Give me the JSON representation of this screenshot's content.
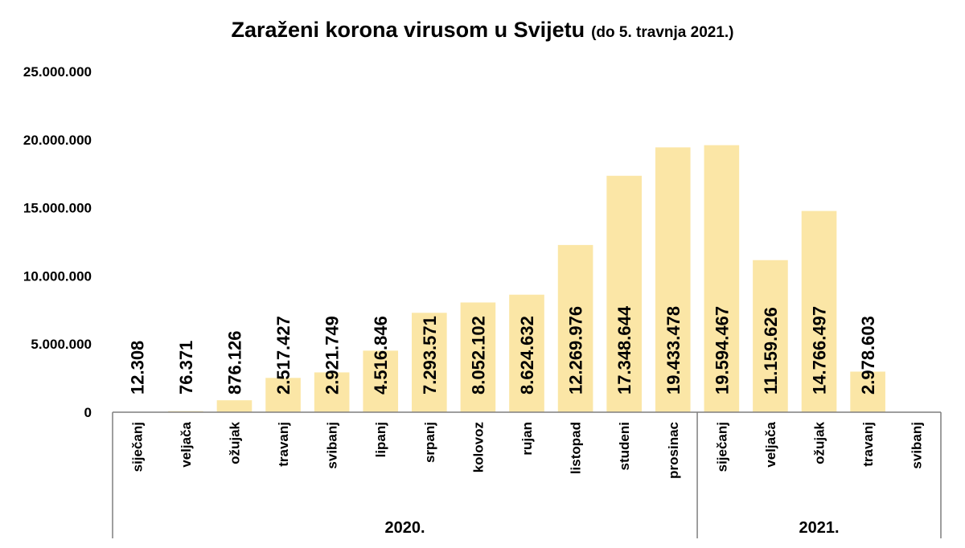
{
  "chart_data": {
    "type": "bar",
    "title": "Zaraženi korona virusom u Svijetu",
    "subtitle": "(do 5. travnja 2021.)",
    "xlabel": "",
    "ylabel": "",
    "ylim": [
      0,
      25000000
    ],
    "yticks": [
      0,
      5000000,
      10000000,
      15000000,
      20000000,
      25000000
    ],
    "ytick_labels": [
      "0",
      "5.000.000",
      "10.000.000",
      "15.000.000",
      "20.000.000",
      "25.000.000"
    ],
    "grid": false,
    "legend": "none",
    "bar_color": "#fbe6a6",
    "categories": [
      "siječanj",
      "veljača",
      "ožujak",
      "travanj",
      "svibanj",
      "lipanj",
      "srpanj",
      "kolovoz",
      "rujan",
      "listopad",
      "studeni",
      "prosinac",
      "siječanj",
      "veljača",
      "ožujak",
      "travanj",
      "svibanj"
    ],
    "values": [
      12308,
      76371,
      876126,
      2517427,
      2921749,
      4516846,
      7293571,
      8052102,
      8624632,
      12269976,
      17348644,
      19433478,
      19594467,
      11159626,
      14766497,
      2978603,
      null
    ],
    "data_labels": [
      "12.308",
      "76.371",
      "876.126",
      "2.517.427",
      "2.921.749",
      "4.516.846",
      "7.293.571",
      "8.052.102",
      "8.624.632",
      "12.269.976",
      "17.348.644",
      "19.433.478",
      "19.594.467",
      "11.159.626",
      "14.766.497",
      "2.978.603",
      ""
    ],
    "groups": [
      {
        "label": "2020.",
        "count": 12
      },
      {
        "label": "2021.",
        "count": 5
      }
    ]
  }
}
